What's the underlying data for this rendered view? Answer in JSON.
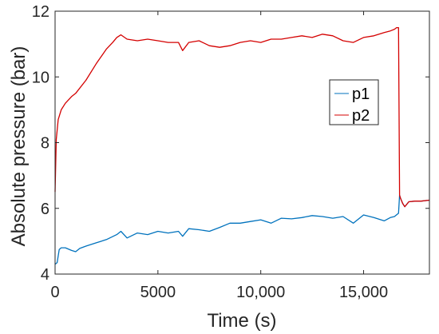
{
  "chart_data": {
    "type": "line",
    "xlabel": "Time (s)",
    "ylabel": "Absolute pressure (bar)",
    "xlim": [
      0,
      18200
    ],
    "ylim": [
      4,
      12
    ],
    "xticks": [
      0,
      5000,
      10000,
      15000
    ],
    "xtick_labels": [
      "0",
      "5000",
      "10,000",
      "15,000"
    ],
    "yticks": [
      4,
      6,
      8,
      10,
      12
    ],
    "ytick_labels": [
      "4",
      "6",
      "8",
      "10",
      "12"
    ],
    "grid": false,
    "legend": {
      "placement": "center-right",
      "entries": [
        "p1",
        "p2"
      ]
    },
    "series": [
      {
        "name": "p1",
        "color": "#0072BD",
        "x": [
          0,
          100,
          200,
          300,
          500,
          800,
          1000,
          1200,
          1500,
          2000,
          2500,
          3000,
          3200,
          3500,
          4000,
          4500,
          5000,
          5500,
          6000,
          6200,
          6500,
          7000,
          7500,
          8000,
          8500,
          9000,
          9500,
          10000,
          10500,
          11000,
          11500,
          12000,
          12500,
          13000,
          13500,
          14000,
          14500,
          15000,
          15500,
          16000,
          16300,
          16500,
          16700,
          16750,
          16800,
          16900,
          17000,
          17200,
          17500,
          17800,
          18200
        ],
        "y": [
          4.3,
          4.35,
          4.75,
          4.8,
          4.8,
          4.72,
          4.68,
          4.78,
          4.85,
          4.95,
          5.05,
          5.2,
          5.3,
          5.1,
          5.25,
          5.2,
          5.3,
          5.25,
          5.3,
          5.15,
          5.38,
          5.35,
          5.3,
          5.42,
          5.55,
          5.55,
          5.6,
          5.65,
          5.55,
          5.7,
          5.68,
          5.72,
          5.78,
          5.75,
          5.7,
          5.75,
          5.55,
          5.8,
          5.72,
          5.62,
          5.72,
          5.75,
          5.85,
          6.4,
          6.3,
          6.15,
          6.05,
          6.2,
          6.22,
          6.22,
          6.25
        ]
      },
      {
        "name": "p2",
        "color": "#D40000",
        "x": [
          0,
          60,
          150,
          300,
          500,
          800,
          1000,
          1500,
          2000,
          2500,
          2800,
          3000,
          3200,
          3500,
          4000,
          4500,
          5000,
          5500,
          6000,
          6200,
          6500,
          7000,
          7500,
          8000,
          8500,
          9000,
          9500,
          10000,
          10500,
          11000,
          11500,
          12000,
          12500,
          13000,
          13500,
          14000,
          14500,
          15000,
          15500,
          16000,
          16300,
          16500,
          16600,
          16700,
          16750,
          16800,
          16900,
          17000,
          17200,
          17500,
          17800,
          18200
        ],
        "y": [
          6.5,
          8.1,
          8.7,
          9.0,
          9.2,
          9.4,
          9.5,
          9.9,
          10.4,
          10.85,
          11.05,
          11.2,
          11.28,
          11.15,
          11.1,
          11.15,
          11.1,
          11.05,
          11.05,
          10.8,
          11.05,
          11.1,
          10.95,
          10.9,
          10.95,
          11.05,
          11.1,
          11.05,
          11.15,
          11.15,
          11.2,
          11.25,
          11.2,
          11.3,
          11.25,
          11.1,
          11.05,
          11.2,
          11.25,
          11.35,
          11.4,
          11.45,
          11.5,
          11.5,
          6.4,
          6.3,
          6.15,
          6.05,
          6.2,
          6.22,
          6.22,
          6.25
        ]
      }
    ]
  }
}
